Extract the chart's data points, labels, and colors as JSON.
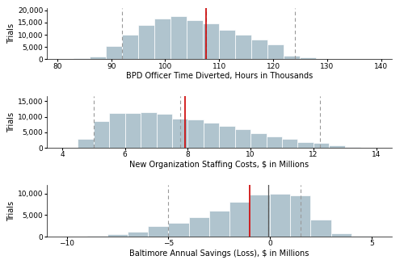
{
  "chart1": {
    "xlabel": "BPD Officer Time Diverted, Hours in Thousands",
    "ylabel": "Trials",
    "xlim": [
      78,
      142
    ],
    "ylim": [
      0,
      21000
    ],
    "xticks": [
      80,
      90,
      100,
      110,
      120,
      130,
      140
    ],
    "yticks": [
      0,
      5000,
      10000,
      15000,
      20000
    ],
    "mean": 107.5,
    "ci_lower": 92.0,
    "ci_median": 107.5,
    "ci_upper": 124.0,
    "bins_left": [
      80,
      83,
      86,
      89,
      92,
      95,
      98,
      101,
      104,
      107,
      110,
      113,
      116,
      119,
      122,
      125,
      128,
      131,
      134,
      137
    ],
    "bin_width": 3,
    "bin_heights": [
      200,
      400,
      1200,
      5500,
      10000,
      14000,
      16500,
      17500,
      16000,
      14500,
      12000,
      10000,
      8000,
      6000,
      1500,
      800,
      300,
      100,
      30,
      5
    ]
  },
  "chart2": {
    "xlabel": "New Organization Staffing Costs, $ in Millions",
    "ylabel": "Trials",
    "xlim": [
      3.5,
      14.5
    ],
    "ylim": [
      0,
      16500
    ],
    "xticks": [
      4,
      6,
      8,
      10,
      12,
      14
    ],
    "yticks": [
      0,
      5000,
      10000,
      15000
    ],
    "mean": 7.9,
    "ci_lower": 5.0,
    "ci_median": 7.75,
    "ci_upper": 12.2,
    "bins_left": [
      4.5,
      5.0,
      5.5,
      6.0,
      6.5,
      7.0,
      7.5,
      8.0,
      8.5,
      9.0,
      9.5,
      10.0,
      10.5,
      11.0,
      11.5,
      12.0,
      12.5,
      13.0,
      13.5,
      14.0
    ],
    "bin_width": 0.5,
    "bin_heights": [
      2800,
      8700,
      11300,
      11200,
      11500,
      11000,
      9500,
      9000,
      8000,
      7000,
      6000,
      4800,
      3800,
      2800,
      2000,
      1500,
      900,
      400,
      150,
      50
    ]
  },
  "chart3": {
    "xlabel": "Baltimore Annual Savings (Loss), $ in Millions",
    "ylabel": "Trials",
    "xlim": [
      -11,
      6
    ],
    "ylim": [
      0,
      12000
    ],
    "xticks": [
      -10,
      -5,
      0,
      5
    ],
    "yticks": [
      0,
      5000,
      10000
    ],
    "mean": -1.0,
    "ci_lower": -5.0,
    "ci_median": -0.1,
    "ci_upper": 1.5,
    "bins_left": [
      -9,
      -8,
      -7,
      -6,
      -5,
      -4,
      -3,
      -2,
      -1,
      0,
      1,
      2,
      3,
      4
    ],
    "bin_width": 1,
    "bin_heights": [
      200,
      500,
      1200,
      2500,
      3200,
      4500,
      6000,
      8000,
      9800,
      10000,
      9500,
      4000,
      800,
      100
    ]
  },
  "bar_color": "#b0c4ce",
  "bar_edge_color": "white",
  "dashed_line_color": "#999999",
  "red_line_color": "#cc0000",
  "median_line_color": "#555555",
  "ylabel_fontsize": 7,
  "xlabel_fontsize": 7,
  "tick_fontsize": 6.5
}
